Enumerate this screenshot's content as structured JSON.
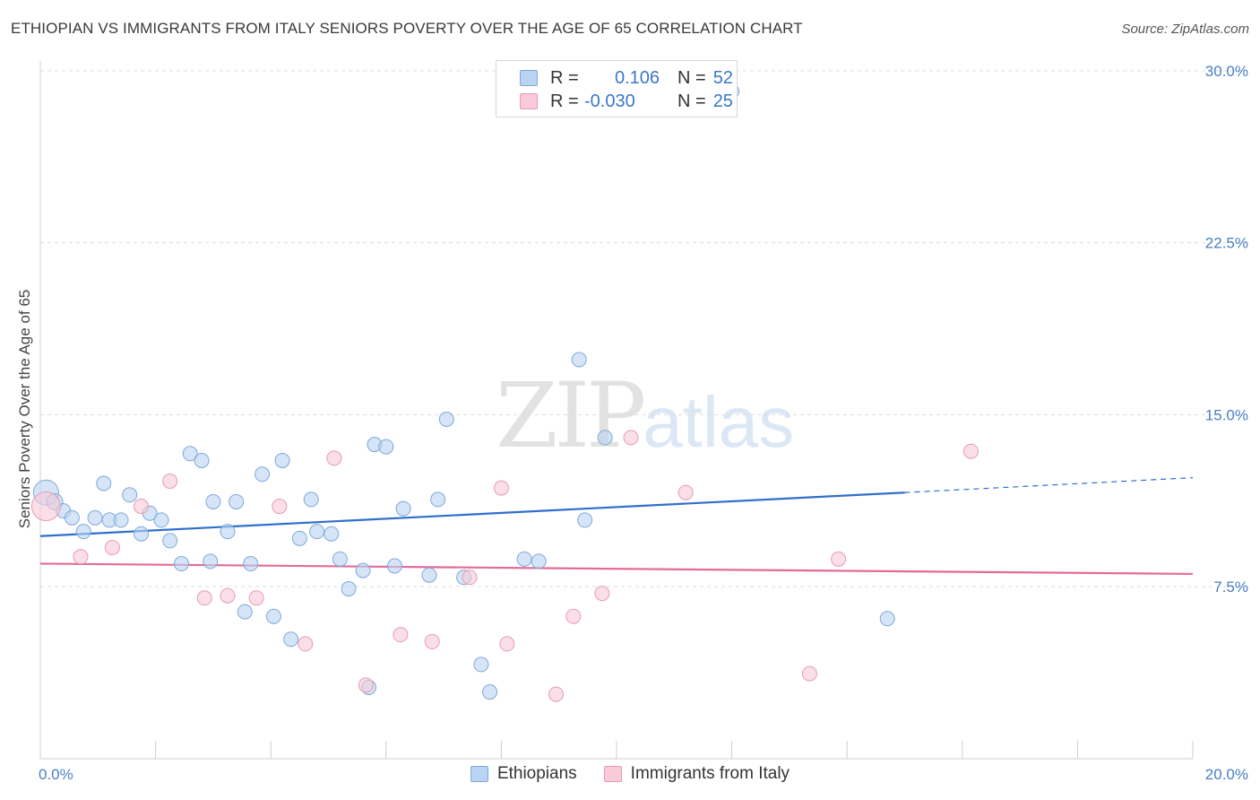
{
  "title": "ETHIOPIAN VS IMMIGRANTS FROM ITALY SENIORS POVERTY OVER THE AGE OF 65 CORRELATION CHART",
  "source": "Source: ZipAtlas.com",
  "watermark": {
    "zip": "ZIP",
    "atlas": "atlas"
  },
  "legend": {
    "rows": [
      {
        "r_label": "R =",
        "r_value": "0.106",
        "n_label": "N =",
        "n_value": "52"
      },
      {
        "r_label": "R =",
        "r_value": "-0.030",
        "n_label": "N =",
        "n_value": "25"
      }
    ]
  },
  "bottom_legend": {
    "series0": "Ethiopians",
    "series1": "Immigrants from Italy"
  },
  "colors": {
    "blue_fill": "#b9d3f2",
    "blue_stroke": "#7ea8da",
    "blue_line": "#2f6fca",
    "pink_fill": "#f9cad8",
    "pink_stroke": "#e89ab4",
    "pink_line": "#e36b97",
    "grid": "#dddddd",
    "tick_text": "#4a7fc4"
  },
  "chart_data": {
    "type": "scatter",
    "title": "ETHIOPIAN VS IMMIGRANTS FROM ITALY SENIORS POVERTY OVER THE AGE OF 65 CORRELATION CHART",
    "xlabel": "",
    "ylabel": "Seniors Poverty Over the Age of 65",
    "xlim": [
      0,
      20
    ],
    "ylim": [
      0,
      30.75
    ],
    "x_ticks": [
      "0.0%",
      "20.0%"
    ],
    "y_ticks": [
      {
        "value": 30.0,
        "label": "30.0%"
      },
      {
        "value": 22.5,
        "label": "22.5%"
      },
      {
        "value": 15.0,
        "label": "15.0%"
      },
      {
        "value": 7.5,
        "label": "7.5%"
      }
    ],
    "grid": true,
    "legend_position": "top-center",
    "series": [
      {
        "name": "Ethiopians",
        "r": 0.106,
        "n": 52,
        "trend": {
          "x0": 0,
          "y0": 9.7,
          "x1": 15.0,
          "y1": 11.6,
          "dash_to_x": 20.0,
          "dash_to_y": 12.25
        },
        "points": [
          [
            0.1,
            11.6,
            14
          ],
          [
            0.25,
            11.2,
            9
          ],
          [
            0.4,
            10.8,
            8
          ],
          [
            0.55,
            10.5,
            8
          ],
          [
            0.75,
            9.9,
            8
          ],
          [
            0.95,
            10.5,
            8
          ],
          [
            1.1,
            12.0,
            8
          ],
          [
            1.2,
            10.4,
            8
          ],
          [
            1.4,
            10.4,
            8
          ],
          [
            1.55,
            11.5,
            8
          ],
          [
            1.75,
            9.8,
            8
          ],
          [
            1.9,
            10.7,
            8
          ],
          [
            2.1,
            10.4,
            8
          ],
          [
            2.25,
            9.5,
            8
          ],
          [
            2.45,
            8.5,
            8
          ],
          [
            2.6,
            13.3,
            8
          ],
          [
            2.8,
            13.0,
            8
          ],
          [
            2.95,
            8.6,
            8
          ],
          [
            3.0,
            11.2,
            8
          ],
          [
            3.25,
            9.9,
            8
          ],
          [
            3.4,
            11.2,
            8
          ],
          [
            3.55,
            6.4,
            8
          ],
          [
            3.65,
            8.5,
            8
          ],
          [
            3.85,
            12.4,
            8
          ],
          [
            4.05,
            6.2,
            8
          ],
          [
            4.2,
            13.0,
            8
          ],
          [
            4.35,
            5.2,
            8
          ],
          [
            4.5,
            9.6,
            8
          ],
          [
            4.7,
            11.3,
            8
          ],
          [
            4.8,
            9.9,
            8
          ],
          [
            5.05,
            9.8,
            8
          ],
          [
            5.2,
            8.7,
            8
          ],
          [
            5.35,
            7.4,
            8
          ],
          [
            5.6,
            8.2,
            8
          ],
          [
            5.7,
            3.1,
            8
          ],
          [
            5.8,
            13.7,
            8
          ],
          [
            6.0,
            13.6,
            8
          ],
          [
            6.15,
            8.4,
            8
          ],
          [
            6.3,
            10.9,
            8
          ],
          [
            6.75,
            8.0,
            8
          ],
          [
            6.9,
            11.3,
            8
          ],
          [
            7.05,
            14.8,
            8
          ],
          [
            7.35,
            7.9,
            8
          ],
          [
            7.65,
            4.1,
            8
          ],
          [
            7.8,
            2.9,
            8
          ],
          [
            8.4,
            8.7,
            8
          ],
          [
            8.65,
            8.6,
            8
          ],
          [
            9.35,
            17.4,
            8
          ],
          [
            9.45,
            10.4,
            8
          ],
          [
            9.8,
            14.0,
            8
          ],
          [
            12.0,
            29.1,
            8
          ],
          [
            14.7,
            6.1,
            8
          ]
        ]
      },
      {
        "name": "Immigrants from Italy",
        "r": -0.03,
        "n": 25,
        "trend": {
          "x0": 0,
          "y0": 8.5,
          "x1": 20.0,
          "y1": 8.05
        },
        "points": [
          [
            0.1,
            11.0,
            16
          ],
          [
            0.7,
            8.8,
            8
          ],
          [
            1.25,
            9.2,
            8
          ],
          [
            1.75,
            11.0,
            8
          ],
          [
            2.25,
            12.1,
            8
          ],
          [
            2.85,
            7.0,
            8
          ],
          [
            3.25,
            7.1,
            8
          ],
          [
            3.75,
            7.0,
            8
          ],
          [
            4.15,
            11.0,
            8
          ],
          [
            4.6,
            5.0,
            8
          ],
          [
            5.1,
            13.1,
            8
          ],
          [
            5.65,
            3.2,
            8
          ],
          [
            6.25,
            5.4,
            8
          ],
          [
            6.8,
            5.1,
            8
          ],
          [
            7.45,
            7.9,
            8
          ],
          [
            8.0,
            11.8,
            8
          ],
          [
            8.1,
            5.0,
            8
          ],
          [
            8.95,
            2.8,
            8
          ],
          [
            9.25,
            6.2,
            8
          ],
          [
            9.75,
            7.2,
            8
          ],
          [
            10.25,
            14.0,
            8
          ],
          [
            11.2,
            11.6,
            8
          ],
          [
            13.35,
            3.7,
            8
          ],
          [
            13.85,
            8.7,
            8
          ],
          [
            16.15,
            13.4,
            8
          ]
        ]
      }
    ]
  }
}
